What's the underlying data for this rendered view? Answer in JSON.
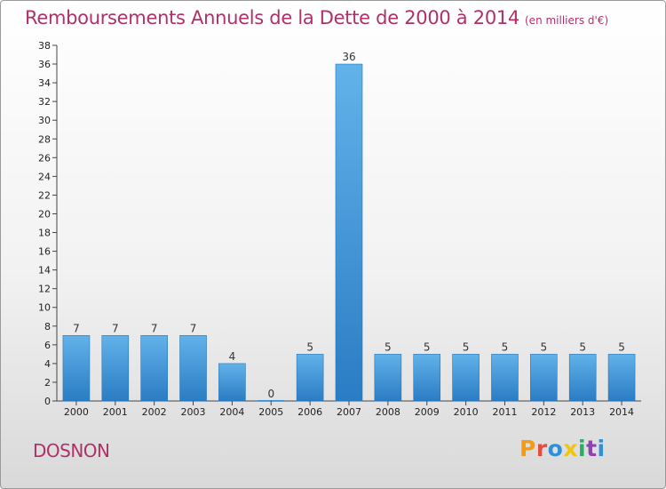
{
  "header": {
    "title": "Remboursements Annuels de la Dette de 2000 à 2014",
    "unit": "(en milliers d'€)"
  },
  "footer": {
    "commune": "DOSNON",
    "logo_text": "Proxiti",
    "logo_colors": [
      "#f39c12",
      "#e74c3c",
      "#2f8fd8",
      "#f1c40f",
      "#27ae60",
      "#8e44ad",
      "#2f8fd8"
    ]
  },
  "chart_data": {
    "type": "bar",
    "title": "Remboursements Annuels de la Dette de 2000 à 2014",
    "ylabel": "",
    "xlabel": "",
    "categories": [
      "2000",
      "2001",
      "2002",
      "2003",
      "2004",
      "2005",
      "2006",
      "2007",
      "2008",
      "2009",
      "2010",
      "2011",
      "2012",
      "2013",
      "2014"
    ],
    "values": [
      7,
      7,
      7,
      7,
      4,
      0,
      5,
      36,
      5,
      5,
      5,
      5,
      5,
      5,
      5
    ],
    "value_labels": [
      "7",
      "7",
      "7",
      "7",
      "4",
      "0",
      "5",
      "36",
      "5",
      "5",
      "5",
      "5",
      "5",
      "5",
      "5"
    ],
    "ylim": [
      0,
      38
    ],
    "yticks": [
      0,
      2,
      4,
      6,
      8,
      10,
      12,
      14,
      16,
      18,
      20,
      22,
      24,
      26,
      28,
      30,
      32,
      34,
      36,
      38
    ],
    "grid": false,
    "legend": "none",
    "bar_color": "#3a8fd6",
    "bar_highlight": "#62b2ea",
    "title_color": "#b0306a"
  }
}
